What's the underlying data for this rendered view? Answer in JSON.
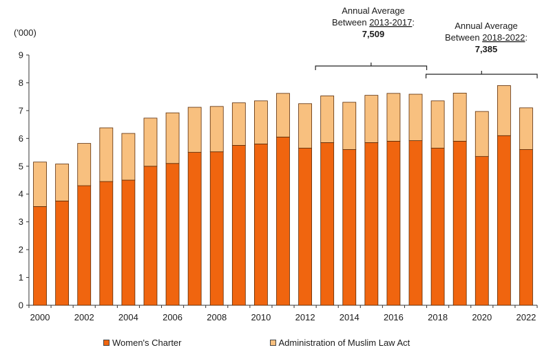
{
  "chart_data": {
    "type": "bar",
    "stacked": true,
    "unit_label": "('000)",
    "x": [
      "2000",
      "2001",
      "2002",
      "2003",
      "2004",
      "2005",
      "2006",
      "2007",
      "2008",
      "2009",
      "2010",
      "2011",
      "2012",
      "2013",
      "2014",
      "2015",
      "2016",
      "2017",
      "2018",
      "2019",
      "2020",
      "2021",
      "2022"
    ],
    "x_tick_labels": [
      "2000",
      "2002",
      "2004",
      "2006",
      "2008",
      "2010",
      "2012",
      "2014",
      "2016",
      "2018",
      "2020",
      "2022"
    ],
    "ylim": [
      0,
      9
    ],
    "y_ticks": [
      "0",
      "1",
      "2",
      "3",
      "4",
      "5",
      "6",
      "7",
      "8",
      "9"
    ],
    "series": [
      {
        "name": "Women's Charter",
        "values": [
          3.55,
          3.75,
          4.3,
          4.45,
          4.5,
          5.0,
          5.1,
          5.5,
          5.52,
          5.75,
          5.8,
          6.05,
          5.65,
          5.85,
          5.6,
          5.85,
          5.9,
          5.92,
          5.65,
          5.9,
          5.35,
          6.1,
          5.6
        ]
      },
      {
        "name": "Administration of Muslim Law Act",
        "values": [
          1.6,
          1.33,
          1.52,
          1.93,
          1.68,
          1.73,
          1.82,
          1.62,
          1.63,
          1.53,
          1.55,
          1.57,
          1.6,
          1.68,
          1.7,
          1.7,
          1.72,
          1.67,
          1.7,
          1.73,
          1.62,
          1.8,
          1.5
        ]
      }
    ],
    "grid": false,
    "legend_position": "bottom",
    "colors": {
      "womens_charter": "#f0650f",
      "amla": "#f8c07f",
      "bar_edge": "#5a2a05"
    },
    "annotations": [
      {
        "line1": "Annual Average",
        "line2_prefix": "Between ",
        "line2_range": "2013-2017",
        "line2_suffix": ":",
        "value": "7,509",
        "span": [
          "2013",
          "2017"
        ]
      },
      {
        "line1": "Annual Average",
        "line2_prefix": "Between ",
        "line2_range": "2018-2022",
        "line2_suffix": ":",
        "value": "7,385",
        "span": [
          "2018",
          "2022"
        ]
      }
    ]
  },
  "legend": {
    "items": [
      {
        "label": "Women's Charter"
      },
      {
        "label": "Administration of Muslim Law Act"
      }
    ]
  }
}
